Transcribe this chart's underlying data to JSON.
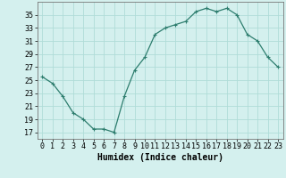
{
  "x": [
    0,
    1,
    2,
    3,
    4,
    5,
    6,
    7,
    8,
    9,
    10,
    11,
    12,
    13,
    14,
    15,
    16,
    17,
    18,
    19,
    20,
    21,
    22,
    23
  ],
  "y": [
    25.5,
    24.5,
    22.5,
    20,
    19,
    17.5,
    17.5,
    17,
    22.5,
    26.5,
    28.5,
    32,
    33,
    33.5,
    34,
    35.5,
    36,
    35.5,
    36,
    35,
    32,
    31,
    28.5,
    27
  ],
  "line_color": "#2d7d6e",
  "marker": "+",
  "marker_size": 3,
  "marker_linewidth": 0.8,
  "bg_color": "#d4f0ee",
  "grid_color": "#b0dcd8",
  "xlabel": "Humidex (Indice chaleur)",
  "xlabel_fontsize": 7,
  "xlim": [
    -0.5,
    23.5
  ],
  "ylim": [
    16,
    37
  ],
  "yticks": [
    17,
    19,
    21,
    23,
    25,
    27,
    29,
    31,
    33,
    35
  ],
  "xticks": [
    0,
    1,
    2,
    3,
    4,
    5,
    6,
    7,
    8,
    9,
    10,
    11,
    12,
    13,
    14,
    15,
    16,
    17,
    18,
    19,
    20,
    21,
    22,
    23
  ],
  "tick_fontsize": 6,
  "linewidth": 0.9
}
